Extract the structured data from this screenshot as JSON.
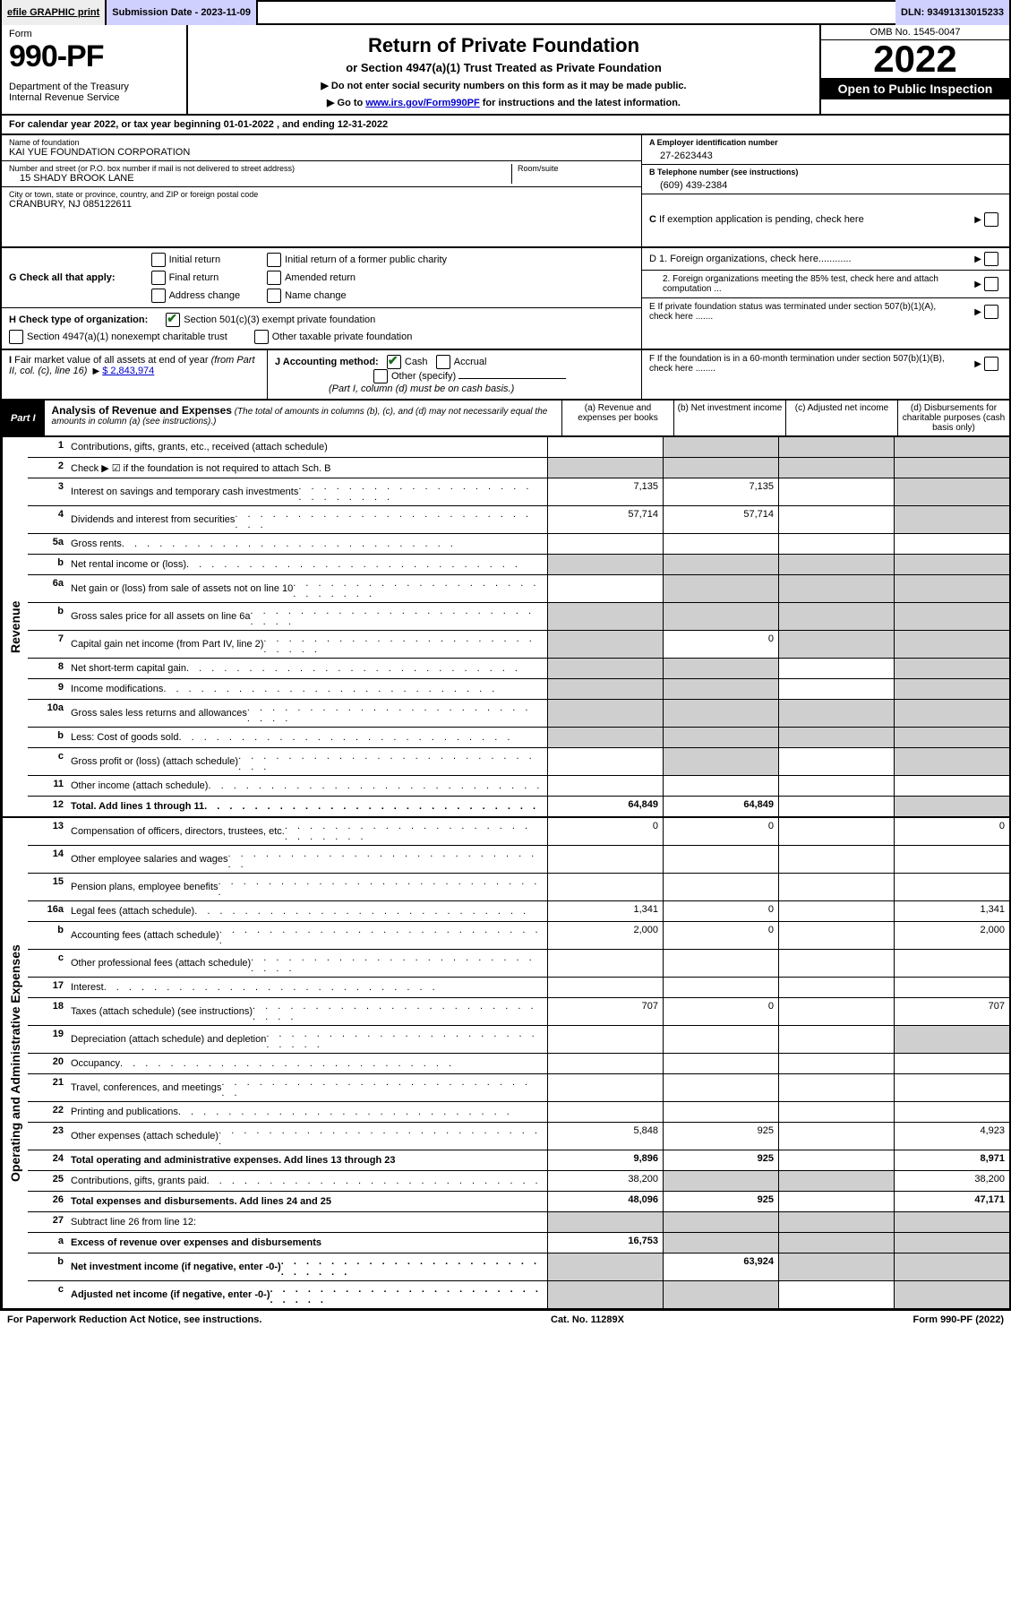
{
  "topbar": {
    "efile": "efile GRAPHIC print",
    "submission": "Submission Date - 2023-11-09",
    "dln": "DLN: 93491313015233"
  },
  "header": {
    "form_label": "Form",
    "form_num": "990-PF",
    "dept": "Department of the Treasury\nInternal Revenue Service",
    "title": "Return of Private Foundation",
    "subtitle": "or Section 4947(a)(1) Trust Treated as Private Foundation",
    "instr1": "▶ Do not enter social security numbers on this form as it may be made public.",
    "instr2_pre": "▶ Go to ",
    "instr2_link": "www.irs.gov/Form990PF",
    "instr2_post": " for instructions and the latest information.",
    "omb": "OMB No. 1545-0047",
    "year": "2022",
    "inspect": "Open to Public Inspection"
  },
  "cal_year": "For calendar year 2022, or tax year beginning 01-01-2022                        , and ending 12-31-2022",
  "entity": {
    "name_label": "Name of foundation",
    "name": "KAI YUE FOUNDATION CORPORATION",
    "addr_label": "Number and street (or P.O. box number if mail is not delivered to street address)",
    "addr": "15 SHADY BROOK LANE",
    "room_label": "Room/suite",
    "city_label": "City or town, state or province, country, and ZIP or foreign postal code",
    "city": "CRANBURY, NJ  085122611",
    "ein_label": "A Employer identification number",
    "ein": "27-2623443",
    "tel_label": "B Telephone number (see instructions)",
    "tel": "(609) 439-2384",
    "c_label": "C If exemption application is pending, check here"
  },
  "sectionG": {
    "prefix": "G Check all that apply:",
    "opts": [
      "Initial return",
      "Initial return of a former public charity",
      "Final return",
      "Amended return",
      "Address change",
      "Name change"
    ]
  },
  "sectionD": {
    "d1": "D 1. Foreign organizations, check here............",
    "d2": "2. Foreign organizations meeting the 85% test, check here and attach computation ..."
  },
  "sectionH": {
    "prefix": "H Check type of organization:",
    "opt1": "Section 501(c)(3) exempt private foundation",
    "opt2": "Section 4947(a)(1) nonexempt charitable trust",
    "opt3": "Other taxable private foundation"
  },
  "sectionE": "E If private foundation status was terminated under section 507(b)(1)(A), check here .......",
  "sectionI": {
    "prefix": "I Fair market value of all assets at end of year (from Part II, col. (c), line 16)",
    "amount": "$  2,843,974"
  },
  "sectionJ": {
    "prefix": "J Accounting method:",
    "cash": "Cash",
    "accrual": "Accrual",
    "other": "Other (specify)",
    "note": "(Part I, column (d) must be on cash basis.)"
  },
  "sectionF": "F If the foundation is in a 60-month termination under section 507(b)(1)(B), check here ........",
  "part1": {
    "label": "Part I",
    "title": "Analysis of Revenue and Expenses",
    "note": "(The total of amounts in columns (b), (c), and (d) may not necessarily equal the amounts in column (a) (see instructions).)",
    "col_a": "(a)  Revenue and expenses per books",
    "col_b": "(b)  Net investment income",
    "col_c": "(c)  Adjusted net income",
    "col_d": "(d)  Disbursements for charitable purposes (cash basis only)"
  },
  "side_rev": "Revenue",
  "side_exp": "Operating and Administrative Expenses",
  "rows": {
    "r1": {
      "n": "1",
      "d": "Contributions, gifts, grants, etc., received (attach schedule)"
    },
    "r2": {
      "n": "2",
      "d": "Check ▶ ☑ if the foundation is not required to attach Sch. B"
    },
    "r3": {
      "n": "3",
      "d": "Interest on savings and temporary cash investments",
      "a": "7,135",
      "b": "7,135"
    },
    "r4": {
      "n": "4",
      "d": "Dividends and interest from securities",
      "a": "57,714",
      "b": "57,714"
    },
    "r5a": {
      "n": "5a",
      "d": "Gross rents"
    },
    "r5b": {
      "n": "b",
      "d": "Net rental income or (loss)"
    },
    "r6a": {
      "n": "6a",
      "d": "Net gain or (loss) from sale of assets not on line 10"
    },
    "r6b": {
      "n": "b",
      "d": "Gross sales price for all assets on line 6a"
    },
    "r7": {
      "n": "7",
      "d": "Capital gain net income (from Part IV, line 2)",
      "b": "0"
    },
    "r8": {
      "n": "8",
      "d": "Net short-term capital gain"
    },
    "r9": {
      "n": "9",
      "d": "Income modifications"
    },
    "r10a": {
      "n": "10a",
      "d": "Gross sales less returns and allowances"
    },
    "r10b": {
      "n": "b",
      "d": "Less: Cost of goods sold"
    },
    "r10c": {
      "n": "c",
      "d": "Gross profit or (loss) (attach schedule)"
    },
    "r11": {
      "n": "11",
      "d": "Other income (attach schedule)"
    },
    "r12": {
      "n": "12",
      "d": "Total. Add lines 1 through 11",
      "a": "64,849",
      "b": "64,849",
      "bold": true
    },
    "r13": {
      "n": "13",
      "d": "Compensation of officers, directors, trustees, etc.",
      "a": "0",
      "b": "0",
      "dd": "0"
    },
    "r14": {
      "n": "14",
      "d": "Other employee salaries and wages"
    },
    "r15": {
      "n": "15",
      "d": "Pension plans, employee benefits"
    },
    "r16a": {
      "n": "16a",
      "d": "Legal fees (attach schedule)",
      "a": "1,341",
      "b": "0",
      "dd": "1,341"
    },
    "r16b": {
      "n": "b",
      "d": "Accounting fees (attach schedule)",
      "a": "2,000",
      "b": "0",
      "dd": "2,000"
    },
    "r16c": {
      "n": "c",
      "d": "Other professional fees (attach schedule)"
    },
    "r17": {
      "n": "17",
      "d": "Interest"
    },
    "r18": {
      "n": "18",
      "d": "Taxes (attach schedule) (see instructions)",
      "a": "707",
      "b": "0",
      "dd": "707"
    },
    "r19": {
      "n": "19",
      "d": "Depreciation (attach schedule) and depletion"
    },
    "r20": {
      "n": "20",
      "d": "Occupancy"
    },
    "r21": {
      "n": "21",
      "d": "Travel, conferences, and meetings"
    },
    "r22": {
      "n": "22",
      "d": "Printing and publications"
    },
    "r23": {
      "n": "23",
      "d": "Other expenses (attach schedule)",
      "a": "5,848",
      "b": "925",
      "dd": "4,923"
    },
    "r24": {
      "n": "24",
      "d": "Total operating and administrative expenses. Add lines 13 through 23",
      "a": "9,896",
      "b": "925",
      "dd": "8,971",
      "bold": true
    },
    "r25": {
      "n": "25",
      "d": "Contributions, gifts, grants paid",
      "a": "38,200",
      "dd": "38,200"
    },
    "r26": {
      "n": "26",
      "d": "Total expenses and disbursements. Add lines 24 and 25",
      "a": "48,096",
      "b": "925",
      "dd": "47,171",
      "bold": true
    },
    "r27": {
      "n": "27",
      "d": "Subtract line 26 from line 12:"
    },
    "r27a": {
      "n": "a",
      "d": "Excess of revenue over expenses and disbursements",
      "a": "16,753",
      "bold": true
    },
    "r27b": {
      "n": "b",
      "d": "Net investment income (if negative, enter -0-)",
      "b": "63,924",
      "bold": true
    },
    "r27c": {
      "n": "c",
      "d": "Adjusted net income (if negative, enter -0-)",
      "bold": true
    }
  },
  "footer": {
    "left": "For Paperwork Reduction Act Notice, see instructions.",
    "mid": "Cat. No. 11289X",
    "right": "Form 990-PF (2022)"
  }
}
